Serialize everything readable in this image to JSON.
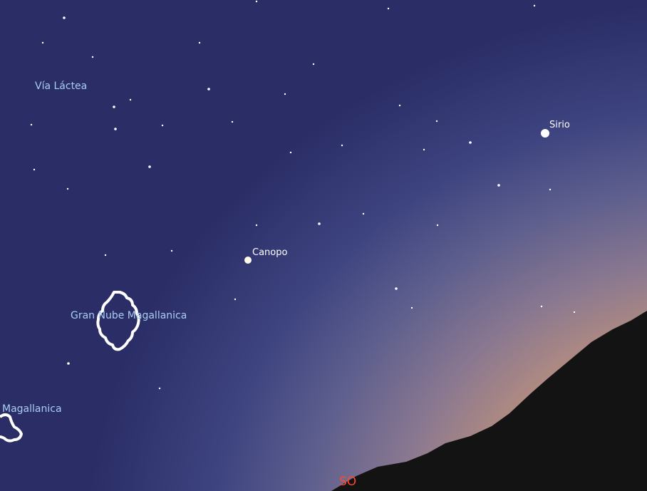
{
  "labels": {
    "milky_way": "Vía Láctea",
    "sirius": "Sirio",
    "canopus": "Canopo",
    "lmc": "Gran Nube Magallanica",
    "smc": "Magallanica",
    "direction": "SO"
  }
}
